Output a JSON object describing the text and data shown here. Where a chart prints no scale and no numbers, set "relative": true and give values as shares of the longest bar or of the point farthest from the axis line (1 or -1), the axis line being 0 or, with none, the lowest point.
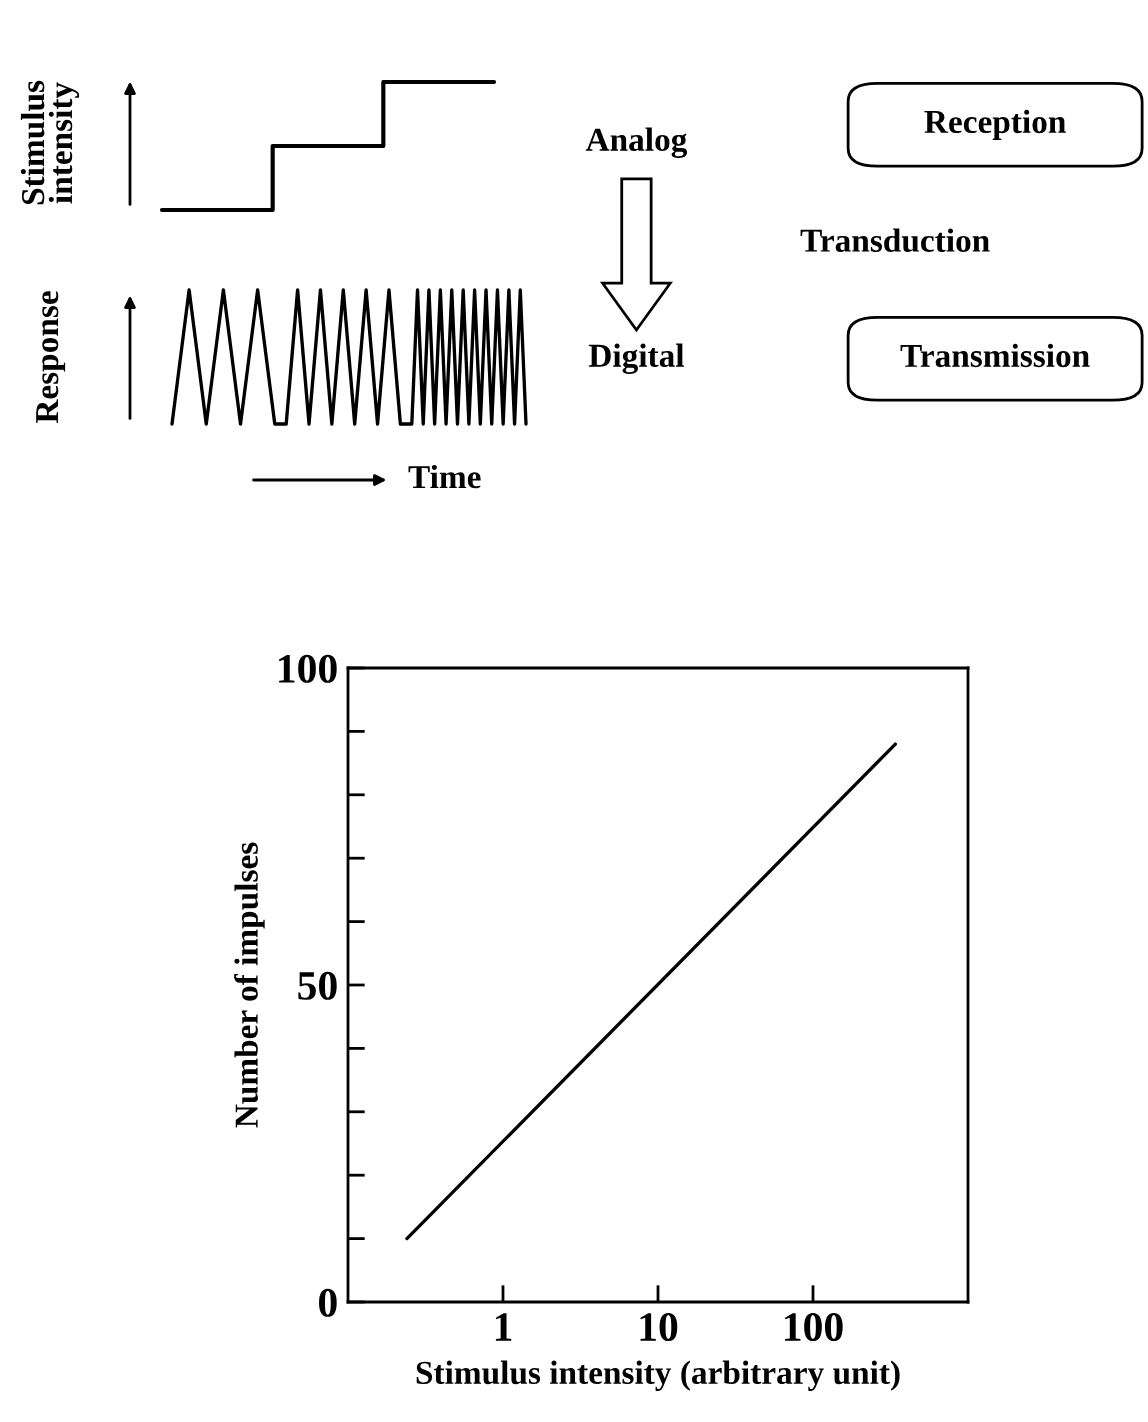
{
  "chart_data": [
    {
      "type": "step",
      "ylabel": "Stimulus\nintensity",
      "categories": [
        null,
        null,
        null,
        null
      ],
      "values": [
        0,
        0.5,
        1,
        1
      ],
      "relative": true,
      "color": "#000000"
    },
    {
      "type": "line",
      "ylabel": "Response",
      "xlabel": "Time",
      "relative": true,
      "color": "#000000",
      "categories": [
        null,
        null,
        null,
        null,
        null,
        null,
        null,
        null,
        null,
        null,
        null,
        null,
        null,
        null,
        null,
        null,
        null,
        null,
        null,
        null,
        null,
        null,
        null,
        null,
        null,
        null,
        null,
        null,
        null,
        null,
        null,
        null,
        null,
        null,
        null,
        null,
        null,
        null,
        null,
        null,
        null,
        null,
        null,
        null,
        null,
        null,
        null,
        null,
        null,
        null,
        null,
        null,
        null,
        null,
        null,
        null,
        null,
        null,
        null,
        null,
        null,
        null,
        null
      ],
      "values": [
        0,
        0.333,
        0.667,
        1,
        0.667,
        0.333,
        0,
        0.333,
        0.667,
        1,
        0.667,
        0.333,
        0,
        0.333,
        0.667,
        1,
        0.667,
        0.333,
        0,
        0,
        0,
        0.5,
        1,
        0.5,
        0,
        0.5,
        1,
        0.5,
        0,
        0.5,
        1,
        0.5,
        0,
        0.5,
        1,
        0.5,
        0,
        0.5,
        1,
        0.5,
        0,
        0,
        0,
        1,
        0,
        1,
        0,
        1,
        0,
        1,
        0,
        1,
        0,
        1,
        0,
        1,
        0,
        1,
        0,
        1,
        0,
        1,
        0
      ]
    },
    {
      "type": "other",
      "annotations": [
        "Analog",
        "Transduction",
        "Digital",
        "Reception",
        "Transmission"
      ]
    },
    {
      "type": "line",
      "xlabel": "Stimulus intensity (arbitrary unit)",
      "ylabel": "Number of impulses",
      "x": [
        0.24,
        340
      ],
      "values": [
        10,
        88
      ],
      "color": "#000000",
      "log": "x",
      "xlim": [
        0.1,
        1000
      ],
      "xticks": [
        1,
        10,
        100
      ],
      "ylim": [
        0,
        100
      ],
      "yticks": [
        0,
        {
          "value": 10,
          "label": null
        },
        {
          "value": 20,
          "label": null
        },
        {
          "value": 30,
          "label": null
        },
        {
          "value": 40,
          "label": null
        },
        50,
        {
          "value": 60,
          "label": null
        },
        {
          "value": 70,
          "label": null
        },
        {
          "value": 80,
          "label": null
        },
        {
          "value": 90,
          "label": null
        },
        100
      ]
    }
  ]
}
